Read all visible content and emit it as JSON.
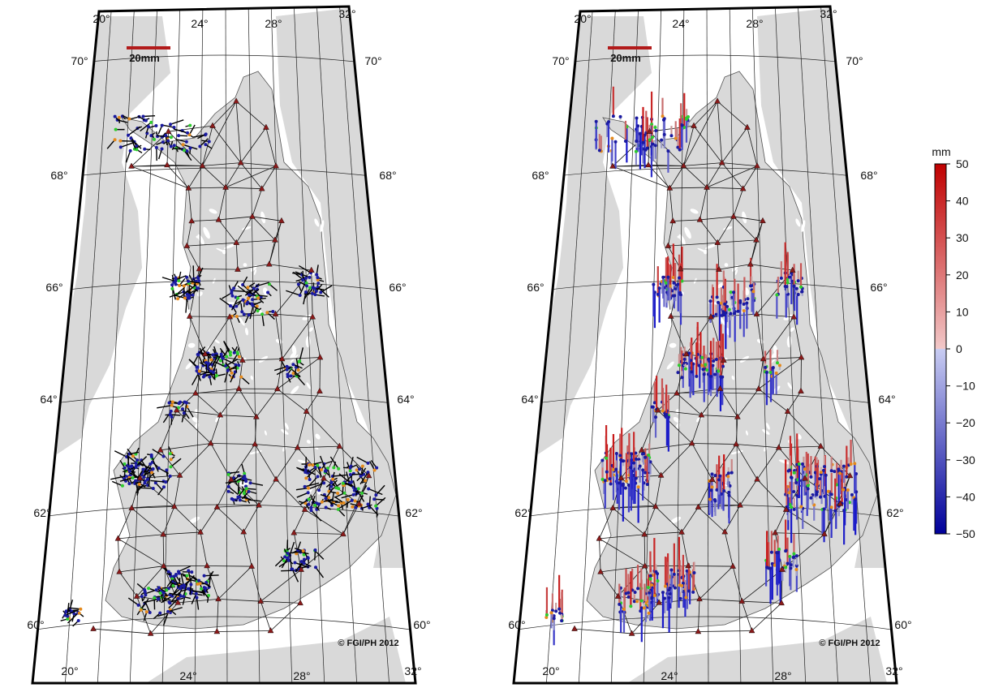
{
  "maps": [
    {
      "name": "horizontal-displacement-map",
      "lat_labels": [
        "70°",
        "68°",
        "66°",
        "64°",
        "62°",
        "60°"
      ],
      "lon_labels": [
        "20°",
        "24°",
        "28°",
        "32°"
      ],
      "scale_label": "20mm",
      "credit": "© FGI/PH 2012"
    },
    {
      "name": "vertical-displacement-map",
      "lat_labels": [
        "70°",
        "68°",
        "66°",
        "64°",
        "62°",
        "60°"
      ],
      "lon_labels": [
        "20°",
        "24°",
        "28°",
        "32°"
      ],
      "scale_label": "20mm",
      "credit": "© FGI/PH 2012"
    }
  ],
  "colorbar": {
    "unit": "mm",
    "ticks": [
      "50",
      "40",
      "30",
      "20",
      "10",
      "0",
      "−10",
      "−20",
      "−30",
      "−40",
      "−50"
    ],
    "range": [
      -50,
      50
    ],
    "colors": {
      "top": "#c00000",
      "mid_red": "#f2c8c8",
      "mid_blue": "#c8ccf2",
      "bottom": "#00009a"
    }
  },
  "colors": {
    "land": "#d9d9d9",
    "sea": "#ffffff",
    "triangle": "#8b1a1a",
    "vector": "#000000",
    "dot_blue": "#1a1aa0",
    "dot_orange": "#e58a1c",
    "dot_green": "#2ecc2e",
    "scale_bar": "#b21b1b"
  }
}
